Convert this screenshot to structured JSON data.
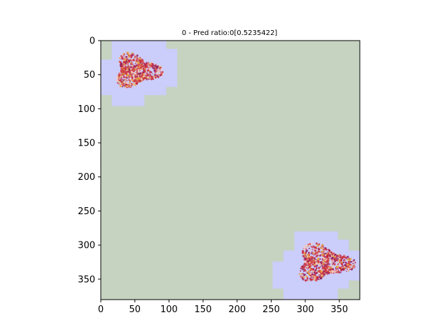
{
  "chart_data": {
    "type": "heatmap",
    "title": "0 - Pred ratio:0[0.5235422]",
    "xlabel": "",
    "ylabel": "",
    "xlim": [
      0,
      380
    ],
    "ylim": [
      380,
      0
    ],
    "xticks": [
      0,
      50,
      100,
      150,
      200,
      250,
      300,
      350
    ],
    "yticks": [
      0,
      50,
      100,
      150,
      200,
      250,
      300,
      350
    ],
    "grid": false,
    "colors": {
      "background": "#c5d3c0",
      "predicted_region": "#cbcdfa",
      "tissue_primary": "#c8283e",
      "tissue_secondary": "#e8a23a",
      "tissue_tertiary": "#8a1f66"
    },
    "predicted_regions": [
      {
        "name": "top-left",
        "polygon": [
          [
            16,
            0
          ],
          [
            96,
            0
          ],
          [
            96,
            12
          ],
          [
            112,
            12
          ],
          [
            112,
            68
          ],
          [
            96,
            68
          ],
          [
            96,
            80
          ],
          [
            64,
            80
          ],
          [
            64,
            96
          ],
          [
            16,
            96
          ],
          [
            16,
            80
          ],
          [
            0,
            80
          ],
          [
            0,
            28
          ],
          [
            16,
            28
          ]
        ],
        "tissue_center": [
          52,
          44
        ],
        "tissue_radius": [
          36,
          26
        ]
      },
      {
        "name": "bottom-right",
        "polygon": [
          [
            284,
            280
          ],
          [
            348,
            280
          ],
          [
            348,
            292
          ],
          [
            364,
            292
          ],
          [
            364,
            308
          ],
          [
            380,
            308
          ],
          [
            380,
            352
          ],
          [
            364,
            352
          ],
          [
            364,
            364
          ],
          [
            348,
            364
          ],
          [
            348,
            380
          ],
          [
            268,
            380
          ],
          [
            268,
            364
          ],
          [
            252,
            364
          ],
          [
            252,
            324
          ],
          [
            268,
            324
          ],
          [
            268,
            308
          ],
          [
            284,
            308
          ]
        ],
        "tissue_center": [
          326,
          326
        ],
        "tissue_radius": [
          44,
          28
        ]
      }
    ]
  }
}
